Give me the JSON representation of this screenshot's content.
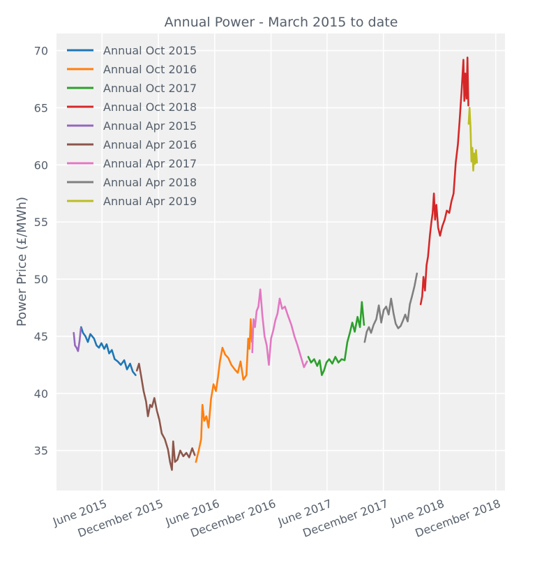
{
  "chart_data": {
    "type": "line",
    "title": "Annual Power - March 2015 to date",
    "xlabel": "",
    "ylabel": "Power Price (£/MWh)",
    "ylim": [
      31.5,
      71.5
    ],
    "xlim": [
      "2015-01-04",
      "2018-12-31"
    ],
    "grid": true,
    "legend_position": "top-left",
    "yticks": [
      35,
      40,
      45,
      50,
      55,
      60,
      65,
      70
    ],
    "xticks": [
      {
        "date": "2015-06-01",
        "label": "June 2015"
      },
      {
        "date": "2015-12-01",
        "label": "December 2015"
      },
      {
        "date": "2016-06-01",
        "label": "June 2016"
      },
      {
        "date": "2016-12-01",
        "label": "December 2016"
      },
      {
        "date": "2017-06-01",
        "label": "June 2017"
      },
      {
        "date": "2017-12-01",
        "label": "December 2017"
      },
      {
        "date": "2018-06-01",
        "label": "June 2018"
      },
      {
        "date": "2018-12-01",
        "label": "December 2018"
      }
    ],
    "series": [
      {
        "name": "Annual Oct 2015",
        "color": "#1f77b4",
        "points": [
          [
            "2015-03-25",
            45.8
          ],
          [
            "2015-03-31",
            45.3
          ],
          [
            "2015-04-08",
            45.0
          ],
          [
            "2015-04-16",
            44.5
          ],
          [
            "2015-04-24",
            45.2
          ],
          [
            "2015-05-06",
            44.8
          ],
          [
            "2015-05-14",
            44.2
          ],
          [
            "2015-05-22",
            44.0
          ],
          [
            "2015-05-30",
            44.4
          ],
          [
            "2015-06-08",
            43.9
          ],
          [
            "2015-06-16",
            44.3
          ],
          [
            "2015-06-24",
            43.5
          ],
          [
            "2015-07-03",
            43.8
          ],
          [
            "2015-07-12",
            43.0
          ],
          [
            "2015-07-22",
            42.8
          ],
          [
            "2015-08-01",
            42.5
          ],
          [
            "2015-08-12",
            42.9
          ],
          [
            "2015-08-21",
            42.1
          ],
          [
            "2015-08-31",
            42.6
          ],
          [
            "2015-09-09",
            41.9
          ],
          [
            "2015-09-18",
            41.6
          ]
        ]
      },
      {
        "name": "Annual Oct 2016",
        "color": "#ff7f0e",
        "points": [
          [
            "2016-04-01",
            34.0
          ],
          [
            "2016-04-10",
            35.0
          ],
          [
            "2016-04-18",
            36.0
          ],
          [
            "2016-04-22",
            39.0
          ],
          [
            "2016-04-28",
            37.6
          ],
          [
            "2016-05-05",
            38.0
          ],
          [
            "2016-05-12",
            37.0
          ],
          [
            "2016-05-20",
            39.5
          ],
          [
            "2016-05-28",
            40.8
          ],
          [
            "2016-06-05",
            40.2
          ],
          [
            "2016-06-12",
            41.5
          ],
          [
            "2016-06-18",
            42.8
          ],
          [
            "2016-06-26",
            44.0
          ],
          [
            "2016-07-05",
            43.4
          ],
          [
            "2016-07-15",
            43.1
          ],
          [
            "2016-07-25",
            42.5
          ],
          [
            "2016-08-05",
            42.1
          ],
          [
            "2016-08-15",
            41.8
          ],
          [
            "2016-08-24",
            42.8
          ],
          [
            "2016-09-02",
            41.2
          ],
          [
            "2016-09-12",
            41.6
          ],
          [
            "2016-09-18",
            44.8
          ],
          [
            "2016-09-22",
            43.9
          ],
          [
            "2016-09-26",
            46.5
          ],
          [
            "2016-09-30",
            44.5
          ]
        ]
      },
      {
        "name": "Annual Oct 2017",
        "color": "#2ca02c",
        "points": [
          [
            "2017-04-01",
            43.2
          ],
          [
            "2017-04-10",
            42.7
          ],
          [
            "2017-04-20",
            43.0
          ],
          [
            "2017-04-30",
            42.4
          ],
          [
            "2017-05-08",
            42.9
          ],
          [
            "2017-05-15",
            41.6
          ],
          [
            "2017-05-22",
            42.0
          ],
          [
            "2017-05-30",
            42.7
          ],
          [
            "2017-06-08",
            43.0
          ],
          [
            "2017-06-18",
            42.6
          ],
          [
            "2017-06-28",
            43.2
          ],
          [
            "2017-07-08",
            42.7
          ],
          [
            "2017-07-18",
            43.0
          ],
          [
            "2017-07-28",
            42.9
          ],
          [
            "2017-08-06",
            44.5
          ],
          [
            "2017-08-14",
            45.3
          ],
          [
            "2017-08-22",
            46.2
          ],
          [
            "2017-08-30",
            45.4
          ],
          [
            "2017-09-08",
            46.7
          ],
          [
            "2017-09-16",
            45.8
          ],
          [
            "2017-09-22",
            48.0
          ],
          [
            "2017-09-29",
            46.0
          ]
        ]
      },
      {
        "name": "Annual Oct 2018",
        "color": "#d62728",
        "points": [
          [
            "2018-04-01",
            47.8
          ],
          [
            "2018-04-06",
            48.5
          ],
          [
            "2018-04-10",
            50.2
          ],
          [
            "2018-04-15",
            49.0
          ],
          [
            "2018-04-20",
            51.2
          ],
          [
            "2018-04-25",
            52.0
          ],
          [
            "2018-05-01",
            53.8
          ],
          [
            "2018-05-06",
            55.0
          ],
          [
            "2018-05-10",
            55.8
          ],
          [
            "2018-05-14",
            57.5
          ],
          [
            "2018-05-18",
            55.2
          ],
          [
            "2018-05-22",
            56.5
          ],
          [
            "2018-05-28",
            54.5
          ],
          [
            "2018-06-03",
            53.8
          ],
          [
            "2018-06-10",
            54.6
          ],
          [
            "2018-06-18",
            55.2
          ],
          [
            "2018-06-25",
            56.0
          ],
          [
            "2018-07-03",
            55.8
          ],
          [
            "2018-07-10",
            56.8
          ],
          [
            "2018-07-17",
            57.5
          ],
          [
            "2018-07-24",
            60.2
          ],
          [
            "2018-07-31",
            61.8
          ],
          [
            "2018-08-06",
            64.0
          ],
          [
            "2018-08-12",
            66.5
          ],
          [
            "2018-08-18",
            69.2
          ],
          [
            "2018-08-21",
            65.6
          ],
          [
            "2018-08-24",
            68.0
          ],
          [
            "2018-08-28",
            65.8
          ],
          [
            "2018-08-31",
            69.4
          ],
          [
            "2018-09-03",
            65.2
          ]
        ]
      },
      {
        "name": "Annual Apr 2015",
        "color": "#9467bd",
        "points": [
          [
            "2015-03-01",
            45.3
          ],
          [
            "2015-03-05",
            44.2
          ],
          [
            "2015-03-10",
            44.0
          ],
          [
            "2015-03-15",
            43.7
          ],
          [
            "2015-03-20",
            44.6
          ],
          [
            "2015-03-24",
            45.7
          ]
        ]
      },
      {
        "name": "Annual Apr 2016",
        "color": "#8c564b",
        "points": [
          [
            "2015-09-22",
            42.0
          ],
          [
            "2015-09-29",
            42.6
          ],
          [
            "2015-10-06",
            41.5
          ],
          [
            "2015-10-14",
            40.2
          ],
          [
            "2015-10-22",
            39.3
          ],
          [
            "2015-10-28",
            38.0
          ],
          [
            "2015-11-04",
            39.0
          ],
          [
            "2015-11-10",
            38.8
          ],
          [
            "2015-11-18",
            39.6
          ],
          [
            "2015-11-26",
            38.5
          ],
          [
            "2015-12-04",
            37.7
          ],
          [
            "2015-12-12",
            36.5
          ],
          [
            "2015-12-22",
            36.0
          ],
          [
            "2016-01-01",
            35.1
          ],
          [
            "2016-01-08",
            34.0
          ],
          [
            "2016-01-14",
            33.3
          ],
          [
            "2016-01-18",
            35.8
          ],
          [
            "2016-01-24",
            34.0
          ],
          [
            "2016-02-01",
            34.2
          ],
          [
            "2016-02-10",
            35.0
          ],
          [
            "2016-02-20",
            34.5
          ],
          [
            "2016-03-01",
            34.8
          ],
          [
            "2016-03-10",
            34.4
          ],
          [
            "2016-03-20",
            35.2
          ],
          [
            "2016-03-28",
            34.6
          ]
        ]
      },
      {
        "name": "Annual Apr 2017",
        "color": "#e377c2",
        "points": [
          [
            "2016-10-01",
            43.6
          ],
          [
            "2016-10-05",
            46.5
          ],
          [
            "2016-10-10",
            45.8
          ],
          [
            "2016-10-15",
            47.2
          ],
          [
            "2016-10-21",
            47.6
          ],
          [
            "2016-10-27",
            49.1
          ],
          [
            "2016-11-03",
            46.8
          ],
          [
            "2016-11-10",
            45.0
          ],
          [
            "2016-11-17",
            44.2
          ],
          [
            "2016-11-24",
            42.5
          ],
          [
            "2016-12-01",
            44.8
          ],
          [
            "2016-12-08",
            45.5
          ],
          [
            "2016-12-15",
            46.4
          ],
          [
            "2016-12-22",
            47.0
          ],
          [
            "2016-12-29",
            48.3
          ],
          [
            "2017-01-06",
            47.4
          ],
          [
            "2017-01-15",
            47.6
          ],
          [
            "2017-01-25",
            46.8
          ],
          [
            "2017-02-05",
            46.0
          ],
          [
            "2017-02-15",
            45.0
          ],
          [
            "2017-02-25",
            44.2
          ],
          [
            "2017-03-08",
            43.2
          ],
          [
            "2017-03-18",
            42.3
          ],
          [
            "2017-03-28",
            42.8
          ]
        ]
      },
      {
        "name": "Annual Apr 2018",
        "color": "#7f7f7f",
        "points": [
          [
            "2017-10-01",
            44.5
          ],
          [
            "2017-10-08",
            45.4
          ],
          [
            "2017-10-15",
            45.8
          ],
          [
            "2017-10-22",
            45.3
          ],
          [
            "2017-10-30",
            46.0
          ],
          [
            "2017-11-08",
            46.5
          ],
          [
            "2017-11-16",
            47.7
          ],
          [
            "2017-11-24",
            46.2
          ],
          [
            "2017-12-02",
            47.3
          ],
          [
            "2017-12-10",
            47.6
          ],
          [
            "2017-12-18",
            46.9
          ],
          [
            "2017-12-26",
            48.3
          ],
          [
            "2018-01-03",
            47.0
          ],
          [
            "2018-01-10",
            46.1
          ],
          [
            "2018-01-18",
            45.7
          ],
          [
            "2018-01-26",
            45.9
          ],
          [
            "2018-02-03",
            46.4
          ],
          [
            "2018-02-10",
            46.9
          ],
          [
            "2018-02-18",
            46.3
          ],
          [
            "2018-02-25",
            47.8
          ],
          [
            "2018-03-04",
            48.5
          ],
          [
            "2018-03-12",
            49.4
          ],
          [
            "2018-03-20",
            50.5
          ]
        ]
      },
      {
        "name": "Annual Apr 2019",
        "color": "#bcbd22",
        "points": [
          [
            "2018-09-04",
            63.6
          ],
          [
            "2018-09-07",
            65.0
          ],
          [
            "2018-09-10",
            63.2
          ],
          [
            "2018-09-13",
            60.3
          ],
          [
            "2018-09-16",
            61.5
          ],
          [
            "2018-09-19",
            59.5
          ],
          [
            "2018-09-22",
            61.0
          ],
          [
            "2018-09-25",
            60.1
          ],
          [
            "2018-09-28",
            61.3
          ],
          [
            "2018-10-01",
            60.2
          ]
        ]
      }
    ]
  }
}
